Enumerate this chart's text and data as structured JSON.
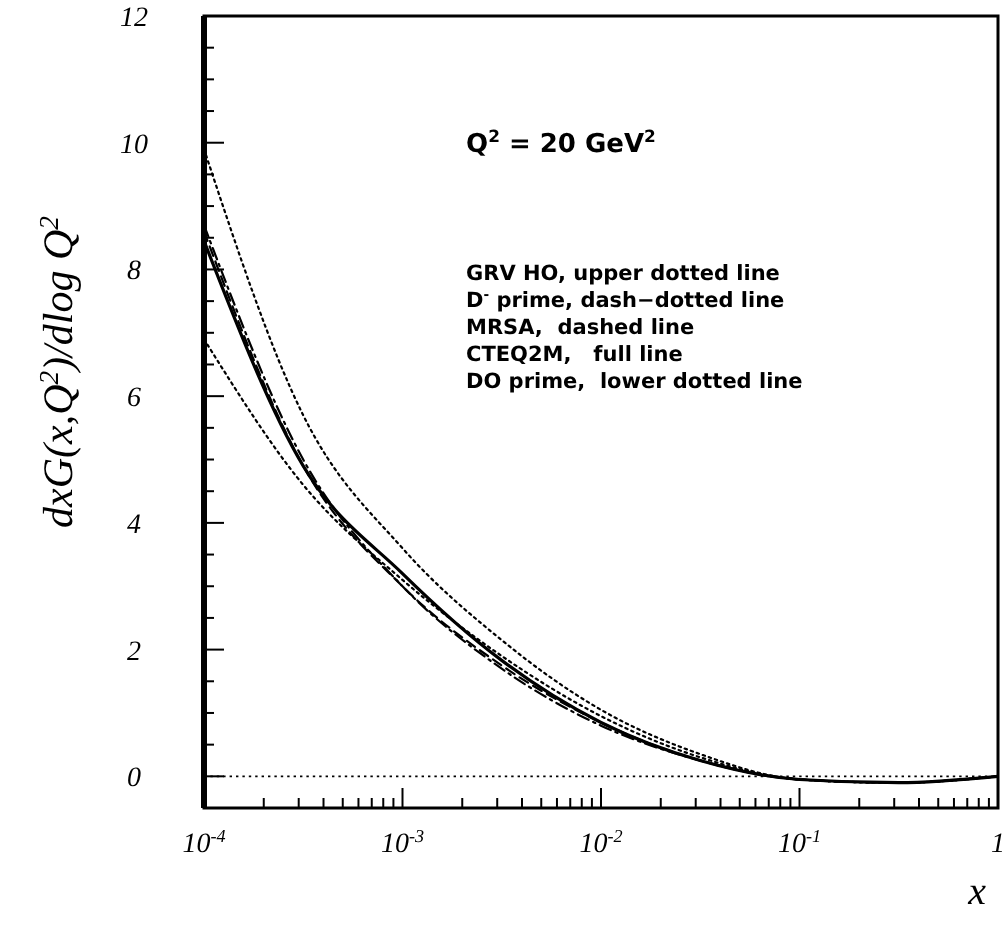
{
  "chart_data": {
    "type": "line",
    "xlabel": "x",
    "ylabel": "dxG(x,Q$^{2}$)/dlog Q$^{2}$",
    "log": "x",
    "xlim": [
      0.0001,
      1
    ],
    "ylim": [
      -0.5,
      12
    ],
    "xticks": [
      {
        "value": 0.0001,
        "label": "10$^{-4}$"
      },
      {
        "value": 0.0002,
        "label": null
      },
      {
        "value": 0.0003,
        "label": null
      },
      {
        "value": 0.0004,
        "label": null
      },
      {
        "value": 0.0005,
        "label": null
      },
      {
        "value": 0.0006,
        "label": null
      },
      {
        "value": 0.0007,
        "label": null
      },
      {
        "value": 0.0008,
        "label": null
      },
      {
        "value": 0.0009,
        "label": null
      },
      {
        "value": 0.001,
        "label": "10$^{-3}$"
      },
      {
        "value": 0.002,
        "label": null
      },
      {
        "value": 0.003,
        "label": null
      },
      {
        "value": 0.004,
        "label": null
      },
      {
        "value": 0.005,
        "label": null
      },
      {
        "value": 0.006,
        "label": null
      },
      {
        "value": 0.007,
        "label": null
      },
      {
        "value": 0.008,
        "label": null
      },
      {
        "value": 0.009,
        "label": null
      },
      {
        "value": 0.01,
        "label": "10$^{-2}$"
      },
      {
        "value": 0.02,
        "label": null
      },
      {
        "value": 0.03,
        "label": null
      },
      {
        "value": 0.04,
        "label": null
      },
      {
        "value": 0.05,
        "label": null
      },
      {
        "value": 0.06,
        "label": null
      },
      {
        "value": 0.07,
        "label": null
      },
      {
        "value": 0.08,
        "label": null
      },
      {
        "value": 0.09,
        "label": null
      },
      {
        "value": 0.1,
        "label": "10$^{-1}$"
      },
      {
        "value": 0.2,
        "label": null
      },
      {
        "value": 0.3,
        "label": null
      },
      {
        "value": 0.4,
        "label": null
      },
      {
        "value": 0.5,
        "label": null
      },
      {
        "value": 0.6,
        "label": null
      },
      {
        "value": 0.7,
        "label": null
      },
      {
        "value": 0.8,
        "label": null
      },
      {
        "value": 0.9,
        "label": null
      },
      {
        "value": 1,
        "label": "1"
      }
    ],
    "yticks": [
      {
        "value": -0.5,
        "label": null
      },
      0,
      {
        "value": 0.5,
        "label": null
      },
      {
        "value": 1,
        "label": null
      },
      {
        "value": 1.5,
        "label": null
      },
      2,
      {
        "value": 2.5,
        "label": null
      },
      {
        "value": 3,
        "label": null
      },
      {
        "value": 3.5,
        "label": null
      },
      4,
      {
        "value": 4.5,
        "label": null
      },
      {
        "value": 5,
        "label": null
      },
      {
        "value": 5.5,
        "label": null
      },
      6,
      {
        "value": 6.5,
        "label": null
      },
      {
        "value": 7,
        "label": null
      },
      {
        "value": 7.5,
        "label": null
      },
      8,
      {
        "value": 8.5,
        "label": null
      },
      {
        "value": 9,
        "label": null
      },
      {
        "value": 9.5,
        "label": null
      },
      10,
      {
        "value": 10.5,
        "label": null
      },
      {
        "value": 11,
        "label": null
      },
      {
        "value": 11.5,
        "label": null
      },
      12
    ],
    "grid": false,
    "x": [
      0.0001,
      0.000316,
      0.001,
      0.00316,
      0.01,
      0.0316,
      0.1,
      0.316,
      1
    ],
    "series": [
      {
        "color": "#000000",
        "line_style": "dotted",
        "values": [
          9.9,
          5.7,
          3.6,
          2.15,
          1.05,
          0.35,
          -0.05,
          -0.1,
          0
        ]
      },
      {
        "color": "#000000",
        "line_style": "dashdot",
        "values": [
          8.7,
          5.0,
          3.0,
          1.7,
          0.8,
          0.25,
          -0.05,
          -0.1,
          0
        ]
      },
      {
        "color": "#000000",
        "line_style": "dashed",
        "values": [
          8.6,
          4.9,
          3.0,
          1.75,
          0.85,
          0.25,
          -0.05,
          -0.1,
          0
        ]
      },
      {
        "color": "#000000",
        "line_style": "solid",
        "values": [
          8.45,
          4.9,
          3.2,
          1.83,
          0.85,
          0.25,
          -0.05,
          -0.1,
          0
        ]
      },
      {
        "color": "#000000",
        "line_style": "dotted",
        "values": [
          6.9,
          4.6,
          3.1,
          1.9,
          0.95,
          0.3,
          -0.05,
          -0.1,
          0
        ]
      }
    ],
    "ref_lines": [
      {
        "axis": "y",
        "value": 0,
        "label": null,
        "line_style": "dotted",
        "color": "#000000"
      }
    ],
    "annotations": [
      "Q$^{2}$ = 20 GeV$^{2}$",
      "GRV HO, upper dotted line",
      "D$^{-}$ prime, dash−dotted line",
      "MRSA,  dashed line",
      "CTEQ2M,   full line",
      "DO prime,  lower dotted line"
    ]
  }
}
